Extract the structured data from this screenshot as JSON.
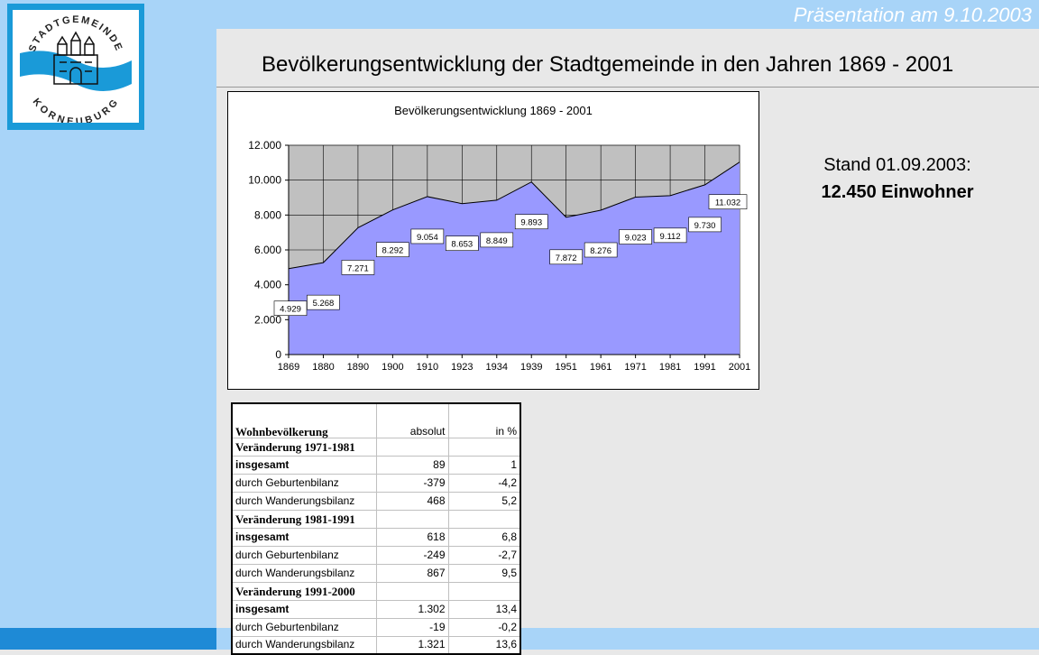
{
  "header": {
    "presentation": "Präsentation am 9.10.2003",
    "title": "Bevölkerungsentwicklung der Stadtgemeinde in den Jahren 1869 - 2001"
  },
  "logo": {
    "top_text": "STADTGEMEINDE",
    "bottom_text": "KORNEUBURG",
    "colors": {
      "frame": "#1a9ad8",
      "wave": "#1a9ad8"
    }
  },
  "status": {
    "line1": "Stand 01.09.2003:",
    "line2": "12.450 Einwohner"
  },
  "chart_data": {
    "type": "area",
    "title": "Bevölkerungsentwicklung 1869 - 2001",
    "categories": [
      "1869",
      "1880",
      "1890",
      "1900",
      "1910",
      "1923",
      "1934",
      "1939",
      "1951",
      "1961",
      "1971",
      "1981",
      "1991",
      "2001"
    ],
    "values": [
      4929,
      5268,
      7271,
      8292,
      9054,
      8653,
      8849,
      9893,
      7872,
      8276,
      9023,
      9112,
      9730,
      11032
    ],
    "data_labels": [
      "4.929",
      "5.268",
      "7.271",
      "8.292",
      "9.054",
      "8.653",
      "8.849",
      "9.893",
      "7.872",
      "8.276",
      "9.023",
      "9.112",
      "9.730",
      "11.032"
    ],
    "y_ticks": [
      "0",
      "2.000",
      "4.000",
      "6.000",
      "8.000",
      "10.000",
      "12.000"
    ],
    "ylim": [
      0,
      12000
    ],
    "grid": true,
    "colors": {
      "area": "#9999ff",
      "plot_bg": "#c0c0c0"
    }
  },
  "table": {
    "headers": [
      "Wohnbevölkerung",
      "absolut",
      "in %"
    ],
    "rows": [
      {
        "kind": "section",
        "label": "Veränderung 1971-1981",
        "abs": "",
        "pct": ""
      },
      {
        "kind": "total",
        "label": "insgesamt",
        "abs": "89",
        "pct": "1"
      },
      {
        "kind": "row",
        "label": "durch Geburtenbilanz",
        "abs": "-379",
        "pct": "-4,2"
      },
      {
        "kind": "row",
        "label": "durch Wanderungsbilanz",
        "abs": "468",
        "pct": "5,2"
      },
      {
        "kind": "section",
        "label": "Veränderung 1981-1991",
        "abs": "",
        "pct": ""
      },
      {
        "kind": "total",
        "label": "insgesamt",
        "abs": "618",
        "pct": "6,8"
      },
      {
        "kind": "row",
        "label": "durch Geburtenbilanz",
        "abs": "-249",
        "pct": "-2,7"
      },
      {
        "kind": "row",
        "label": "durch Wanderungsbilanz",
        "abs": "867",
        "pct": "9,5"
      },
      {
        "kind": "section",
        "label": "Veränderung 1991-2000",
        "abs": "",
        "pct": ""
      },
      {
        "kind": "total",
        "label": "insgesamt",
        "abs": "1.302",
        "pct": "13,4"
      },
      {
        "kind": "row",
        "label": "durch Geburtenbilanz",
        "abs": "-19",
        "pct": "-0,2"
      },
      {
        "kind": "row",
        "label": "durch Wanderungsbilanz",
        "abs": "1.321",
        "pct": "13,6"
      }
    ]
  }
}
